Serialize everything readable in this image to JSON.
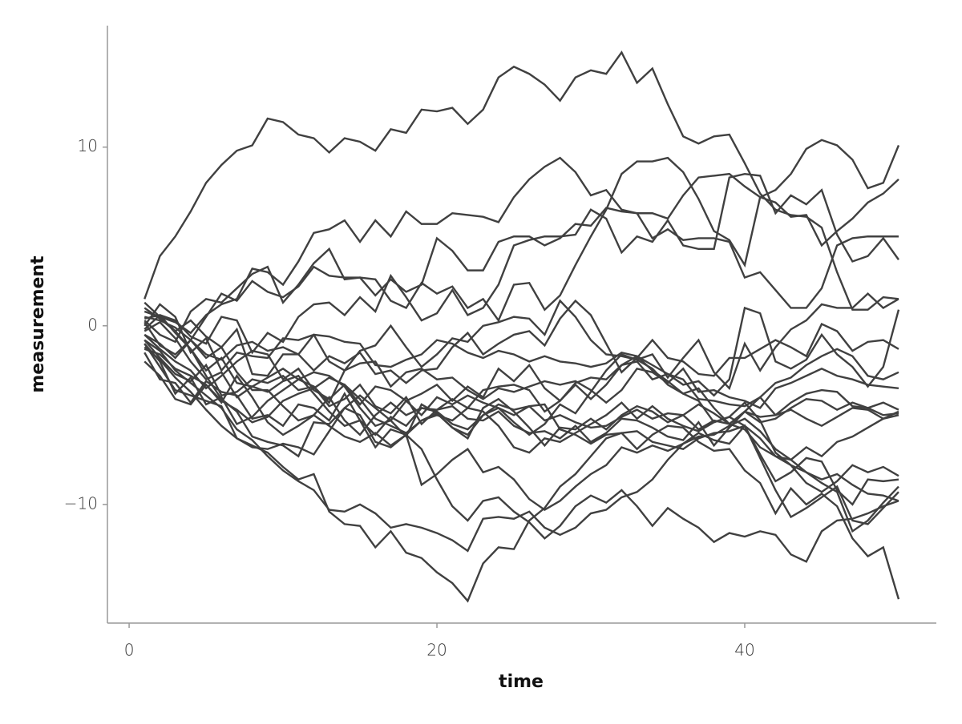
{
  "chart_data": {
    "type": "line",
    "x_label": "time",
    "y_label": "measurement",
    "xlim": [
      -1.41,
      52.45
    ],
    "ylim": [
      -16.64,
      16.8
    ],
    "xticks": [
      0,
      20,
      40
    ],
    "yticks": [
      {
        "value": -10,
        "label": "−10"
      },
      0,
      10
    ],
    "color": "#404040",
    "x": [
      1,
      2,
      3,
      4,
      5,
      6,
      7,
      8,
      9,
      10,
      11,
      12,
      13,
      14,
      15,
      16,
      17,
      18,
      19,
      20,
      21,
      22,
      23,
      24,
      25,
      26,
      27,
      28,
      29,
      30,
      31,
      32,
      33,
      34,
      35,
      36,
      37,
      38,
      39,
      40,
      41,
      42,
      43,
      44,
      45,
      46,
      47,
      48,
      49,
      50
    ],
    "series": [
      {
        "values": [
          1.5,
          3.9,
          5.0,
          6.4,
          8.0,
          9.0,
          9.8,
          10.1,
          11.6,
          11.4,
          10.7,
          10.5,
          9.7,
          10.5,
          10.3,
          9.8,
          11.0,
          10.8,
          12.1,
          12.0,
          12.2,
          11.3,
          12.1,
          13.9,
          14.5,
          14.1,
          13.5,
          12.6,
          13.9,
          14.3,
          14.1,
          15.3,
          13.6,
          14.4,
          12.4,
          10.6,
          10.2,
          10.6,
          10.7,
          9.1,
          7.4,
          6.5,
          6.2,
          6.1,
          5.5,
          3.0,
          0.9,
          0.9,
          1.6,
          1.5
        ]
      },
      {
        "values": [
          0.8,
          0.5,
          0.2,
          -0.4,
          0.6,
          1.2,
          1.5,
          3.2,
          3.0,
          2.3,
          3.6,
          5.2,
          5.4,
          5.9,
          4.7,
          5.9,
          5.0,
          6.4,
          5.7,
          5.7,
          6.3,
          6.2,
          6.1,
          5.8,
          7.2,
          8.2,
          8.9,
          9.4,
          8.6,
          7.3,
          7.6,
          6.5,
          6.3,
          6.3,
          6.0,
          7.3,
          8.3,
          8.4,
          8.5,
          7.8,
          7.2,
          7.6,
          8.5,
          9.9,
          10.4,
          10.1,
          9.3,
          7.7,
          8.0,
          10.1
        ]
      },
      {
        "values": [
          -0.5,
          -1.0,
          -1.8,
          -0.8,
          0.5,
          1.8,
          1.4,
          2.5,
          1.9,
          1.6,
          2.2,
          3.3,
          2.8,
          2.7,
          2.7,
          2.6,
          1.4,
          1.0,
          2.4,
          1.8,
          2.2,
          1.0,
          1.5,
          0.3,
          2.3,
          2.4,
          0.9,
          1.7,
          3.4,
          5.0,
          6.5,
          8.5,
          9.2,
          9.2,
          9.4,
          8.6,
          7.1,
          5.3,
          4.8,
          3.4,
          7.2,
          6.9,
          6.1,
          6.2,
          4.5,
          5.3,
          6.0,
          6.9,
          7.4,
          8.2
        ]
      },
      {
        "values": [
          0.3,
          -0.5,
          -0.9,
          0.8,
          1.5,
          1.3,
          2.1,
          2.9,
          3.3,
          1.3,
          2.3,
          3.5,
          4.3,
          2.6,
          2.7,
          1.7,
          2.6,
          1.9,
          2.3,
          4.9,
          4.2,
          3.1,
          3.1,
          4.7,
          5.0,
          5.0,
          4.5,
          4.9,
          5.7,
          5.6,
          6.6,
          6.4,
          6.3,
          4.9,
          5.4,
          4.8,
          4.9,
          4.9,
          4.7,
          2.7,
          3.0,
          2.0,
          1.0,
          1.0,
          2.1,
          4.5,
          4.9,
          5.0,
          5.0,
          5.0
        ]
      },
      {
        "values": [
          -0.2,
          0.6,
          0.3,
          -0.6,
          -1.0,
          0.5,
          0.3,
          -1.5,
          -0.4,
          -0.9,
          0.5,
          1.2,
          1.3,
          0.6,
          1.6,
          0.8,
          2.8,
          1.6,
          0.3,
          0.7,
          2.0,
          0.6,
          1.0,
          2.3,
          4.5,
          4.8,
          5.0,
          5.0,
          5.1,
          6.5,
          6.0,
          4.1,
          5.0,
          4.7,
          5.9,
          4.5,
          4.3,
          4.3,
          8.3,
          8.5,
          8.4,
          6.3,
          7.3,
          6.8,
          7.6,
          5.1,
          3.6,
          3.9,
          4.9,
          3.7
        ]
      },
      {
        "values": [
          0.0,
          1.2,
          0.5,
          -1.5,
          -0.7,
          -2.5,
          -1.5,
          -1.7,
          -1.8,
          -0.7,
          -0.8,
          -0.5,
          -2.0,
          -2.5,
          -1.4,
          -1.1,
          0.0,
          -1.2,
          -2.3,
          -1.6,
          -0.7,
          -0.9,
          0.0,
          0.2,
          0.5,
          0.4,
          -0.5,
          1.4,
          0.5,
          -0.8,
          -1.6,
          -1.7,
          -1.9,
          -1.6,
          -2.9,
          -1.8,
          -0.8,
          -2.6,
          -3.5,
          -1.0,
          -2.5,
          -1.2,
          -0.2,
          0.3,
          1.2,
          1.0,
          1.0,
          1.8,
          1.0,
          1.5
        ]
      },
      {
        "values": [
          -0.5,
          -1.3,
          -2.0,
          -2.5,
          -3.5,
          -2.8,
          -2.0,
          -1.4,
          -1.6,
          -3.0,
          -2.4,
          -3.6,
          -4.1,
          -3.3,
          -4.4,
          -3.4,
          -3.6,
          -4.2,
          -3.8,
          -3.3,
          -4.2,
          -3.4,
          -4.0,
          -2.4,
          -3.1,
          -2.2,
          -3.5,
          -4.2,
          -3.2,
          -2.9,
          -3.0,
          -2.2,
          -1.7,
          -2.2,
          -2.7,
          -3.3,
          -3.1,
          -3.9,
          -3.0,
          1.0,
          0.7,
          -2.0,
          -2.4,
          -1.9,
          -0.5,
          -1.6,
          -2.3,
          -3.4,
          -2.3,
          0.9
        ]
      },
      {
        "values": [
          1.0,
          0.4,
          -0.3,
          0.3,
          -0.6,
          -1.2,
          -0.2,
          -2.7,
          -2.8,
          -1.6,
          -1.6,
          -2.5,
          -1.7,
          -2.1,
          -1.5,
          -2.7,
          -2.5,
          -3.2,
          -2.5,
          -2.4,
          -1.2,
          -0.4,
          -1.6,
          -1.0,
          -0.5,
          -0.3,
          -1.1,
          0.4,
          1.4,
          0.6,
          -1.0,
          -2.6,
          -1.8,
          -0.8,
          -1.8,
          -2.0,
          -2.7,
          -2.8,
          -1.8,
          -1.8,
          -1.3,
          -0.8,
          -1.2,
          -1.7,
          0.1,
          -0.3,
          -1.4,
          -0.9,
          -0.8,
          -1.3
        ]
      },
      {
        "values": [
          -1.0,
          -2.0,
          -3.8,
          -2.9,
          -4.4,
          -4.0,
          -5.5,
          -5.1,
          -4.2,
          -3.6,
          -3.0,
          -3.4,
          -4.5,
          -4.1,
          -3.3,
          -4.5,
          -4.9,
          -4.0,
          -5.5,
          -4.7,
          -4.1,
          -4.6,
          -3.6,
          -3.4,
          -3.3,
          -3.6,
          -4.8,
          -4.2,
          -3.3,
          -4.1,
          -3.3,
          -2.2,
          -2.0,
          -3.0,
          -2.7,
          -3.0,
          -4.1,
          -4.2,
          -4.4,
          -4.5,
          -4.0,
          -3.2,
          -2.9,
          -2.2,
          -1.7,
          -1.3,
          -1.7,
          -2.8,
          -3.0,
          -2.6
        ]
      },
      {
        "values": [
          -0.8,
          -1.8,
          -2.7,
          -3.1,
          -2.2,
          -3.9,
          -3.7,
          -3.0,
          -3.2,
          -2.8,
          -3.6,
          -3.4,
          -4.3,
          -2.5,
          -2.1,
          -2.0,
          -3.4,
          -2.6,
          -2.4,
          -3.0,
          -2.9,
          -3.6,
          -4.1,
          -3.5,
          -3.7,
          -3.4,
          -3.1,
          -3.3,
          -3.1,
          -3.6,
          -4.3,
          -3.6,
          -2.4,
          -2.6,
          -3.2,
          -2.4,
          -3.7,
          -3.6,
          -4.0,
          -4.2,
          -4.6,
          -3.5,
          -3.2,
          -2.8,
          -2.4,
          -2.8,
          -3.0,
          -3.3,
          -3.4,
          -3.5
        ]
      },
      {
        "values": [
          0.5,
          0.3,
          -0.1,
          -0.8,
          -1.8,
          -1.2,
          -2.6,
          -3.6,
          -3.6,
          -4.5,
          -5.3,
          -5.0,
          -4.0,
          -5.3,
          -6.1,
          -5.0,
          -4.3,
          -5.0,
          -4.6,
          -4.8,
          -5.5,
          -5.8,
          -5.0,
          -4.4,
          -4.7,
          -4.5,
          -5.3,
          -5.0,
          -5.4,
          -5.7,
          -5.6,
          -5.1,
          -4.7,
          -5.2,
          -4.9,
          -5.0,
          -5.8,
          -5.3,
          -5.5,
          -4.8,
          -5.1,
          -5.0,
          -4.3,
          -3.8,
          -3.6,
          -3.7,
          -4.5,
          -4.6,
          -4.3,
          -4.7
        ]
      },
      {
        "values": [
          -1.5,
          -3.0,
          -3.2,
          -4.3,
          -3.1,
          -3.7,
          -3.9,
          -5.2,
          -5.0,
          -5.6,
          -4.4,
          -4.6,
          -5.3,
          -3.8,
          -5.3,
          -6.1,
          -5.1,
          -5.6,
          -4.6,
          -4.7,
          -4.5,
          -5.2,
          -5.3,
          -4.8,
          -5.6,
          -6.0,
          -5.9,
          -6.3,
          -5.6,
          -6.5,
          -6.0,
          -5.2,
          -5.3,
          -5.7,
          -6.2,
          -6.4,
          -5.4,
          -6.7,
          -5.7,
          -4.8,
          -4.0,
          -5.0,
          -4.7,
          -5.2,
          -5.6,
          -5.1,
          -4.6,
          -4.7,
          -5.2,
          -4.8
        ]
      },
      {
        "values": [
          0.2,
          -1.1,
          -1.6,
          -0.8,
          -1.6,
          -1.9,
          -1.1,
          -0.9,
          -1.4,
          -1.2,
          -1.6,
          -0.5,
          -0.6,
          -0.9,
          -1.0,
          -2.2,
          -2.3,
          -1.9,
          -1.6,
          -0.8,
          -1.0,
          -1.5,
          -1.8,
          -1.4,
          -1.6,
          -2.0,
          -1.7,
          -2.0,
          -2.1,
          -2.3,
          -2.1,
          -1.5,
          -1.7,
          -2.5,
          -3.1,
          -3.8,
          -3.5,
          -4.6,
          -5.5,
          -4.8,
          -5.4,
          -5.2,
          -4.6,
          -4.1,
          -4.2,
          -4.7,
          -4.3,
          -4.6,
          -5.0,
          -4.9
        ]
      },
      {
        "values": [
          -0.3,
          0.2,
          -0.7,
          -2.0,
          -3.0,
          -2.6,
          -4.0,
          -3.4,
          -3.7,
          -3.1,
          -2.8,
          -3.8,
          -4.8,
          -5.6,
          -5.3,
          -6.8,
          -5.8,
          -6.1,
          -5.3,
          -4.9,
          -5.7,
          -6.3,
          -4.6,
          -4.1,
          -4.8,
          -5.7,
          -6.7,
          -5.7,
          -5.8,
          -5.2,
          -5.8,
          -5.0,
          -4.5,
          -4.8,
          -5.4,
          -5.0,
          -4.4,
          -4.9,
          -5.5,
          -5.8,
          -6.8,
          -7.3,
          -7.5,
          -6.8,
          -7.3,
          -6.5,
          -6.2,
          -5.7,
          -5.2,
          -5.0
        ]
      },
      {
        "values": [
          -1.0,
          -2.3,
          -3.6,
          -3.9,
          -4.2,
          -4.5,
          -6.3,
          -6.8,
          -6.9,
          -6.6,
          -6.8,
          -7.2,
          -5.9,
          -4.6,
          -3.9,
          -4.6,
          -5.3,
          -4.2,
          -5.0,
          -4.0,
          -4.4,
          -3.9,
          -4.3,
          -4.6,
          -5.4,
          -6.1,
          -5.5,
          -4.4,
          -4.9,
          -3.7,
          -2.5,
          -1.6,
          -1.9,
          -2.4,
          -3.3,
          -3.8,
          -4.2,
          -5.4,
          -5.1,
          -5.6,
          -6.3,
          -7.3,
          -7.8,
          -8.8,
          -9.3,
          -8.7,
          -7.8,
          -8.2,
          -7.9,
          -8.4
        ]
      },
      {
        "values": [
          0.4,
          0.6,
          -0.4,
          -1.3,
          -2.5,
          -1.8,
          -3.2,
          -3.4,
          -2.9,
          -2.4,
          -3.0,
          -2.6,
          -2.8,
          -3.4,
          -4.6,
          -5.6,
          -5.3,
          -6.2,
          -4.4,
          -4.9,
          -5.7,
          -6.1,
          -5.0,
          -4.6,
          -5.0,
          -4.5,
          -4.4,
          -5.8,
          -6.1,
          -6.6,
          -6.1,
          -6.0,
          -5.9,
          -6.5,
          -6.7,
          -6.9,
          -6.3,
          -6.0,
          -5.9,
          -5.6,
          -7.2,
          -8.7,
          -8.2,
          -7.4,
          -7.6,
          -9.2,
          -10.0,
          -8.6,
          -8.7,
          -8.6
        ]
      },
      {
        "values": [
          -1.3,
          -1.6,
          -2.4,
          -2.8,
          -3.3,
          -4.2,
          -4.7,
          -5.4,
          -5.1,
          -4.2,
          -3.8,
          -3.5,
          -2.9,
          -3.3,
          -4.1,
          -5.2,
          -5.6,
          -6.0,
          -5.3,
          -5.0,
          -5.3,
          -4.6,
          -4.8,
          -5.6,
          -6.8,
          -7.1,
          -6.3,
          -6.5,
          -6.0,
          -5.5,
          -5.0,
          -4.3,
          -5.2,
          -4.5,
          -5.2,
          -5.6,
          -5.9,
          -5.4,
          -5.1,
          -4.3,
          -5.3,
          -7.1,
          -7.8,
          -8.2,
          -8.8,
          -9.3,
          -11.5,
          -10.9,
          -9.9,
          -9.0
        ]
      },
      {
        "values": [
          -2.0,
          -2.8,
          -4.1,
          -4.4,
          -3.3,
          -4.3,
          -2.8,
          -4.0,
          -5.4,
          -6.1,
          -5.6,
          -5.0,
          -5.6,
          -6.2,
          -6.5,
          -6.0,
          -6.7,
          -6.1,
          -8.9,
          -8.3,
          -7.5,
          -6.9,
          -8.2,
          -7.9,
          -8.6,
          -9.7,
          -10.3,
          -9.8,
          -9.0,
          -8.3,
          -7.8,
          -6.8,
          -7.1,
          -6.7,
          -7.0,
          -6.6,
          -6.0,
          -6.4,
          -6.6,
          -5.6,
          -7.4,
          -9.2,
          -10.7,
          -10.2,
          -9.6,
          -9.0,
          -10.9,
          -11.1,
          -10.2,
          -9.3
        ]
      },
      {
        "values": [
          1.3,
          0.5,
          -0.3,
          -1.3,
          -2.8,
          -4.1,
          -4.8,
          -6.2,
          -6.5,
          -6.7,
          -7.3,
          -5.4,
          -5.5,
          -4.6,
          -5.0,
          -6.5,
          -6.8,
          -6.1,
          -6.9,
          -8.6,
          -10.1,
          -10.9,
          -9.8,
          -9.6,
          -10.4,
          -11.0,
          -11.9,
          -11.2,
          -10.1,
          -9.5,
          -9.9,
          -9.2,
          -10.1,
          -11.2,
          -10.2,
          -10.8,
          -11.3,
          -12.1,
          -11.6,
          -11.8,
          -11.5,
          -11.7,
          -12.8,
          -13.2,
          -11.5,
          -10.9,
          -10.8,
          -10.5,
          -10.1,
          -9.8
        ]
      },
      {
        "values": [
          -1.2,
          -1.9,
          -2.9,
          -3.7,
          -4.7,
          -5.6,
          -6.3,
          -6.7,
          -7.1,
          -7.9,
          -8.6,
          -8.3,
          -10.4,
          -11.1,
          -11.2,
          -12.4,
          -11.5,
          -12.7,
          -13.0,
          -13.8,
          -14.4,
          -15.4,
          -13.3,
          -12.4,
          -12.5,
          -10.9,
          -10.2,
          -9.0,
          -8.3,
          -7.3,
          -6.3,
          -6.0,
          -6.9,
          -6.1,
          -5.6,
          -5.7,
          -6.5,
          -7.0,
          -6.9,
          -8.1,
          -8.8,
          -10.5,
          -9.1,
          -10.0,
          -9.4,
          -10.1,
          -11.9,
          -12.9,
          -12.4,
          -15.3
        ]
      },
      {
        "values": [
          -0.8,
          -1.4,
          -2.5,
          -3.2,
          -3.9,
          -4.6,
          -5.8,
          -6.4,
          -7.3,
          -8.1,
          -8.7,
          -9.2,
          -10.3,
          -10.4,
          -10.0,
          -10.5,
          -11.3,
          -11.1,
          -11.3,
          -11.6,
          -12.0,
          -12.6,
          -10.8,
          -10.7,
          -10.8,
          -10.4,
          -11.3,
          -11.7,
          -11.3,
          -10.5,
          -10.3,
          -9.6,
          -9.3,
          -8.6,
          -7.5,
          -6.6,
          -6.2,
          -6.1,
          -5.6,
          -5.2,
          -5.9,
          -6.9,
          -7.5,
          -8.2,
          -8.6,
          -8.3,
          -8.9,
          -9.4,
          -9.5,
          -9.8
        ]
      }
    ]
  }
}
